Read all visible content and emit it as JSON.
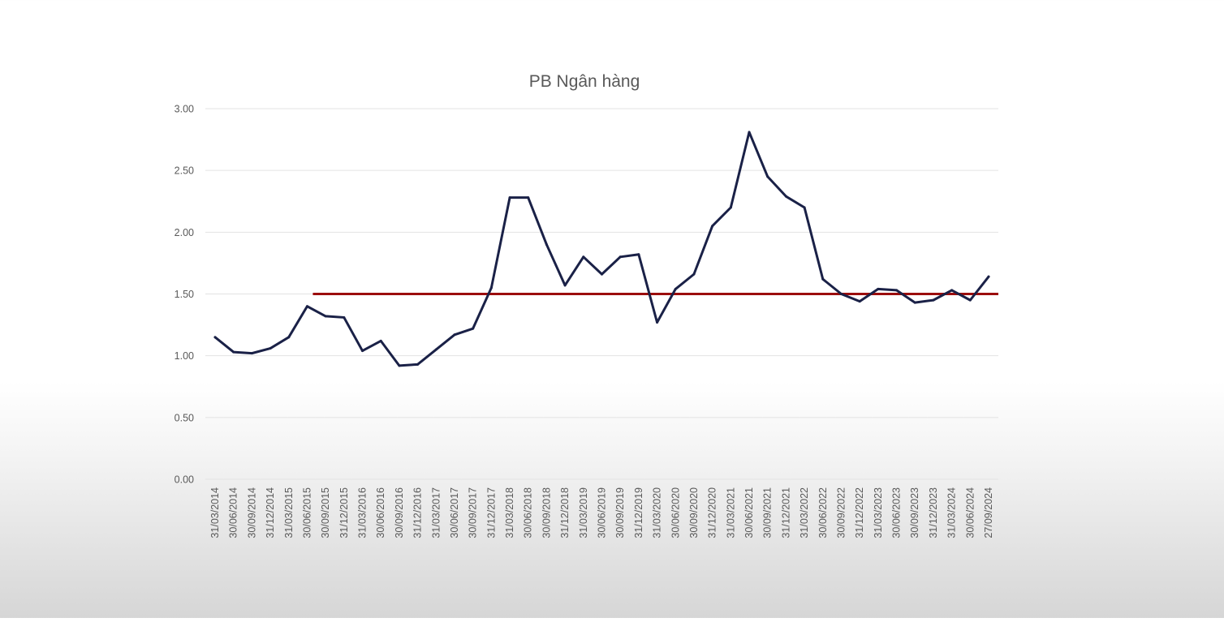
{
  "chart_data": {
    "type": "line",
    "title": "PB Ngân hàng",
    "xlabel": "",
    "ylabel": "",
    "ylim": [
      0,
      3
    ],
    "yticks": [
      "0.00",
      "0.50",
      "1.00",
      "1.50",
      "2.00",
      "2.50",
      "3.00"
    ],
    "ytick_values": [
      0,
      0.5,
      1,
      1.5,
      2,
      2.5,
      3
    ],
    "grid": true,
    "legend": false,
    "x": [
      "31/03/2014",
      "30/06/2014",
      "30/09/2014",
      "31/12/2014",
      "31/03/2015",
      "30/06/2015",
      "30/09/2015",
      "31/12/2015",
      "31/03/2016",
      "30/06/2016",
      "30/09/2016",
      "31/12/2016",
      "31/03/2017",
      "30/06/2017",
      "30/09/2017",
      "31/12/2017",
      "31/03/2018",
      "30/06/2018",
      "30/09/2018",
      "31/12/2018",
      "31/03/2019",
      "30/06/2019",
      "30/09/2019",
      "31/12/2019",
      "31/03/2020",
      "30/06/2020",
      "30/09/2020",
      "31/12/2020",
      "31/03/2021",
      "30/06/2021",
      "30/09/2021",
      "31/12/2021",
      "31/03/2022",
      "30/06/2022",
      "30/09/2022",
      "31/12/2022",
      "31/03/2023",
      "30/06/2023",
      "30/09/2023",
      "31/12/2023",
      "31/03/2024",
      "30/06/2024",
      "27/09/2024"
    ],
    "series": [
      {
        "name": "",
        "color": "#1a2147",
        "values": [
          1.15,
          1.03,
          1.02,
          1.06,
          1.15,
          1.4,
          1.32,
          1.31,
          1.04,
          1.12,
          0.92,
          0.93,
          1.05,
          1.17,
          1.22,
          1.55,
          2.28,
          2.28,
          1.9,
          1.57,
          1.8,
          1.66,
          1.8,
          1.82,
          1.27,
          1.54,
          1.66,
          2.05,
          2.2,
          2.81,
          2.45,
          2.29,
          2.2,
          1.62,
          1.5,
          1.44,
          1.54,
          1.53,
          1.43,
          1.45,
          1.53,
          1.45,
          1.64
        ]
      }
    ],
    "reference_line": {
      "value": 1.5,
      "from_index": 5,
      "color": "#9b0d0d"
    }
  }
}
